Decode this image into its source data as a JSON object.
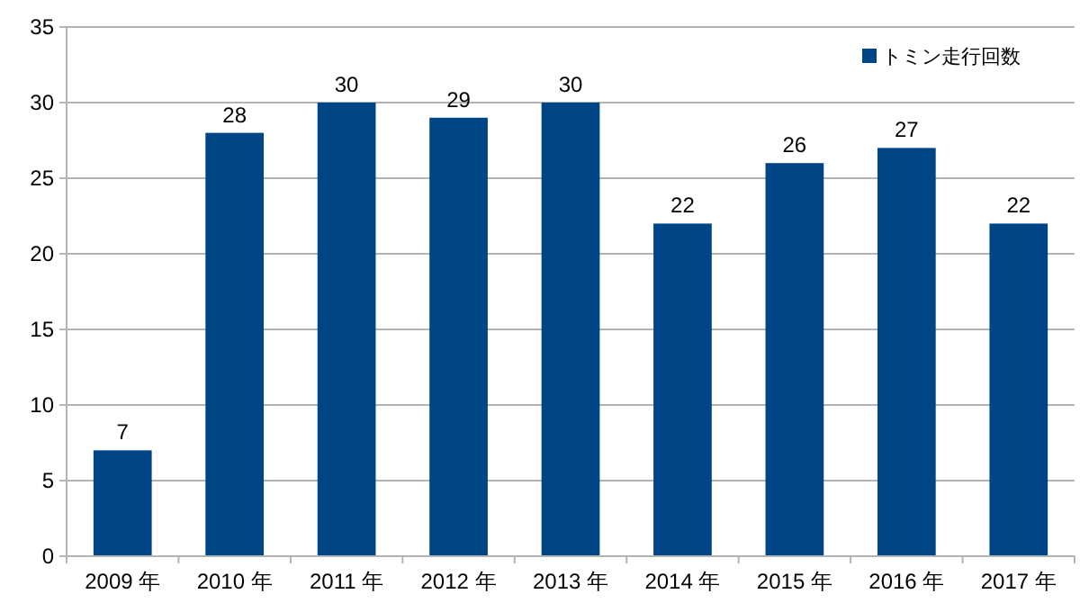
{
  "chart_data": {
    "type": "bar",
    "categories": [
      "2009 年",
      "2010 年",
      "2011 年",
      "2012 年",
      "2013 年",
      "2014 年",
      "2015 年",
      "2016 年",
      "2017 年"
    ],
    "series": [
      {
        "name": "トミン走行回数",
        "color": "#004586",
        "values": [
          7,
          28,
          30,
          29,
          30,
          22,
          26,
          27,
          22
        ]
      }
    ],
    "ylim": [
      0,
      35
    ],
    "yticks": [
      0,
      5,
      10,
      15,
      20,
      25,
      30,
      35
    ],
    "grid": "y",
    "legend": "top right",
    "data_labels": true
  }
}
